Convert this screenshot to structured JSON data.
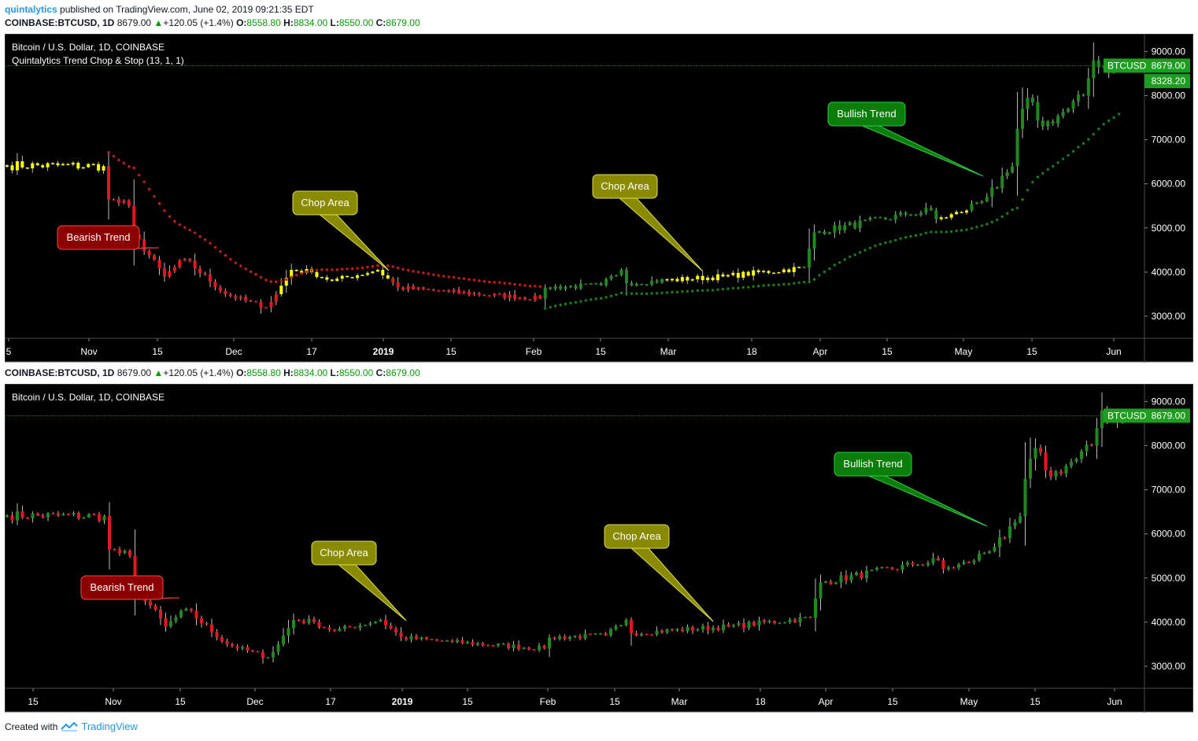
{
  "header": {
    "author": "quintalytics",
    "published_text": "published on TradingView.com, June 02, 2019 09:21:35 EDT"
  },
  "quote": {
    "symbol": "COINBASE:BTCUSD, 1D",
    "last": "8679.00",
    "change": "+120.05 (+1.4%)",
    "o_label": "O:",
    "o": "8558.80",
    "h_label": "H:",
    "h": "8834.00",
    "l_label": "L:",
    "l": "8550.00",
    "c_label": "C:",
    "c": "8679.00"
  },
  "colors": {
    "panel_bg": "#000000",
    "bull": "#1e8a1e",
    "bear": "#e8141f",
    "chop": "#ffff00",
    "chop_callout": "#8a8a00",
    "bear_callout": "#8b0000",
    "bull_callout": "#0b7d0b",
    "axis_text": "#ffffff"
  },
  "footer": {
    "created_with": "Created with",
    "tradingview": "TradingView"
  },
  "chart_data": [
    {
      "type": "candlestick",
      "title": "Bitcoin / U.S. Dollar, 1D, COINBASE",
      "indicator": "Quintalytics Trend Chop & Stop (13, 1, 1)",
      "x_ticks": [
        "5",
        "Nov",
        "15",
        "Dec",
        "17",
        "2019",
        "15",
        "Feb",
        "15",
        "Mar",
        "18",
        "Apr",
        "15",
        "May",
        "15",
        "Jun"
      ],
      "y_ticks": [
        "9000.00",
        "8000.00",
        "7000.00",
        "6000.00",
        "5000.00",
        "4000.00",
        "3000.00"
      ],
      "ylim": [
        2500,
        9400
      ],
      "price_labels": {
        "symbol": "BTCUSD",
        "last": "8679.00",
        "stop": "8328.20"
      },
      "callouts": [
        {
          "text": "Bearish Trend",
          "kind": "bear"
        },
        {
          "text": "Chop Area",
          "kind": "chop"
        },
        {
          "text": "Chop Area",
          "kind": "chop"
        },
        {
          "text": "Bullish Trend",
          "kind": "bull"
        }
      ],
      "anchors": [
        [
          "2018-10-25",
          6420
        ],
        [
          "2018-11-13",
          6400
        ],
        [
          "2018-11-14",
          5650
        ],
        [
          "2018-11-18",
          5500
        ],
        [
          "2018-11-19",
          4850
        ],
        [
          "2018-11-25",
          3900
        ],
        [
          "2018-11-29",
          4300
        ],
        [
          "2018-12-07",
          3500
        ],
        [
          "2018-12-15",
          3200
        ],
        [
          "2018-12-17",
          3500
        ],
        [
          "2018-12-20",
          4050
        ],
        [
          "2018-12-24",
          4000
        ],
        [
          "2018-12-28",
          3800
        ],
        [
          "2019-01-06",
          4050
        ],
        [
          "2019-01-10",
          3650
        ],
        [
          "2019-01-20",
          3550
        ],
        [
          "2019-02-07",
          3400
        ],
        [
          "2019-02-08",
          3650
        ],
        [
          "2019-02-19",
          3700
        ],
        [
          "2019-02-23",
          4050
        ],
        [
          "2019-02-24",
          3750
        ],
        [
          "2019-03-15",
          3900
        ],
        [
          "2019-03-31",
          4100
        ],
        [
          "2019-04-02",
          4900
        ],
        [
          "2019-04-20",
          5300
        ],
        [
          "2019-04-25",
          5400
        ],
        [
          "2019-04-26",
          5200
        ],
        [
          "2019-05-01",
          5350
        ],
        [
          "2019-05-08",
          5900
        ],
        [
          "2019-05-11",
          6400
        ],
        [
          "2019-05-12",
          7250
        ],
        [
          "2019-05-14",
          7950
        ],
        [
          "2019-05-17",
          7300
        ],
        [
          "2019-05-22",
          7700
        ],
        [
          "2019-05-25",
          8000
        ],
        [
          "2019-05-27",
          8800
        ],
        [
          "2019-05-31",
          8550
        ],
        [
          "2019-06-01",
          8679
        ]
      ],
      "trend_regimes": [
        {
          "from": "2018-10-25",
          "to": "2018-11-13",
          "state": "chop"
        },
        {
          "from": "2018-11-14",
          "to": "2018-12-17",
          "state": "bear"
        },
        {
          "from": "2018-12-18",
          "to": "2019-01-08",
          "state": "chop"
        },
        {
          "from": "2019-01-09",
          "to": "2019-02-07",
          "state": "bear"
        },
        {
          "from": "2019-02-08",
          "to": "2019-03-03",
          "state": "bull"
        },
        {
          "from": "2019-03-04",
          "to": "2019-03-30",
          "state": "chop"
        },
        {
          "from": "2019-03-31",
          "to": "2019-04-26",
          "state": "bull"
        },
        {
          "from": "2019-04-27",
          "to": "2019-05-02",
          "state": "chop"
        },
        {
          "from": "2019-05-03",
          "to": "2019-06-01",
          "state": "bull"
        }
      ]
    },
    {
      "type": "candlestick",
      "title": "Bitcoin / U.S. Dollar, 1D, COINBASE",
      "x_ticks": [
        "15",
        "Nov",
        "15",
        "Dec",
        "17",
        "2019",
        "15",
        "Feb",
        "15",
        "Mar",
        "18",
        "Apr",
        "15",
        "May",
        "15",
        "Jun"
      ],
      "y_ticks": [
        "9000.00",
        "8000.00",
        "7000.00",
        "6000.00",
        "5000.00",
        "4000.00",
        "3000.00"
      ],
      "ylim": [
        2500,
        9400
      ],
      "price_labels": {
        "symbol": "BTCUSD",
        "last": "8679.00"
      },
      "callouts": [
        {
          "text": "Bearish Trend",
          "kind": "bear"
        },
        {
          "text": "Chop Area",
          "kind": "chop"
        },
        {
          "text": "Chop Area",
          "kind": "chop"
        },
        {
          "text": "Bullish Trend",
          "kind": "bull"
        }
      ]
    }
  ]
}
